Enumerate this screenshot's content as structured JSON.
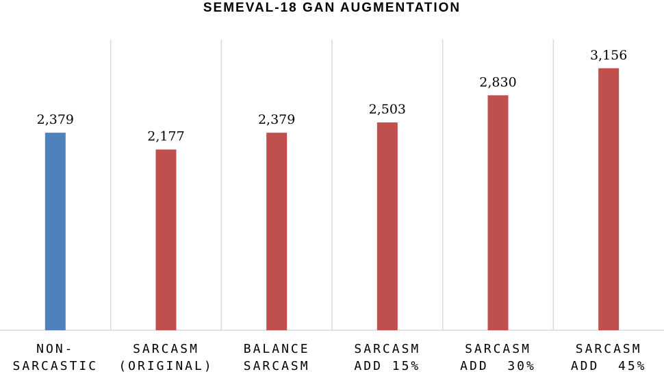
{
  "chart_data": {
    "type": "bar",
    "title": "SEMEVAL-18 GAN AUGMENTATION",
    "categories": [
      [
        "NON-",
        "SARCASTIC"
      ],
      [
        "SARCASM",
        "(ORIGINAL)"
      ],
      [
        "BALANCE",
        "SARCASM"
      ],
      [
        "SARCASM",
        "ADD 15%"
      ],
      [
        "SARCASM",
        "ADD  30%"
      ],
      [
        "SARCASM",
        "ADD  45%"
      ]
    ],
    "values": [
      2379,
      2177,
      2379,
      2503,
      2830,
      3156
    ],
    "data_labels": [
      "2,379",
      "2,177",
      "2,379",
      "2,503",
      "2,830",
      "3,156"
    ],
    "bar_colors": [
      "#4f81bd",
      "#c0504d",
      "#c0504d",
      "#c0504d",
      "#c0504d",
      "#c0504d"
    ],
    "ylim": [
      0,
      3500
    ],
    "gridlines": "vertical category separators",
    "legend": "none",
    "xlabel": "",
    "ylabel": ""
  }
}
